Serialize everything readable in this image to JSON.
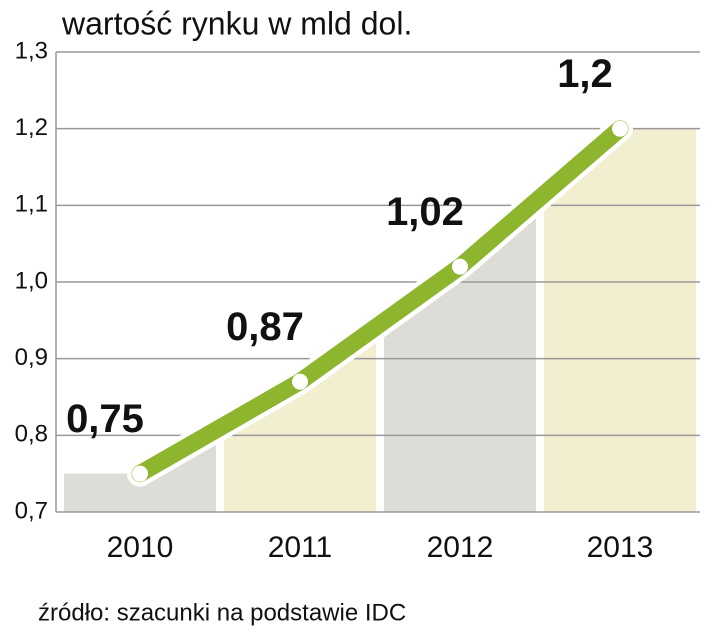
{
  "chart_data": {
    "type": "line",
    "title": "wartość rynku w mld dol.",
    "source": "źródło: szacunki na podstawie IDC",
    "categories": [
      "2010",
      "2011",
      "2012",
      "2013"
    ],
    "values": [
      0.75,
      0.87,
      1.02,
      1.2
    ],
    "value_labels": [
      "0,75",
      "0,87",
      "1,02",
      "1,2"
    ],
    "color": "#8db52e",
    "ylim": [
      0.7,
      1.3
    ],
    "yticks": [
      {
        "value": 0.7,
        "label": "0,7"
      },
      {
        "value": 0.8,
        "label": "0,8"
      },
      {
        "value": 0.9,
        "label": "0,9"
      },
      {
        "value": 1.0,
        "label": "1,0"
      },
      {
        "value": 1.1,
        "label": "1,1"
      },
      {
        "value": 1.2,
        "label": "1,2"
      },
      {
        "value": 1.3,
        "label": "1,3"
      }
    ],
    "grid": true
  }
}
